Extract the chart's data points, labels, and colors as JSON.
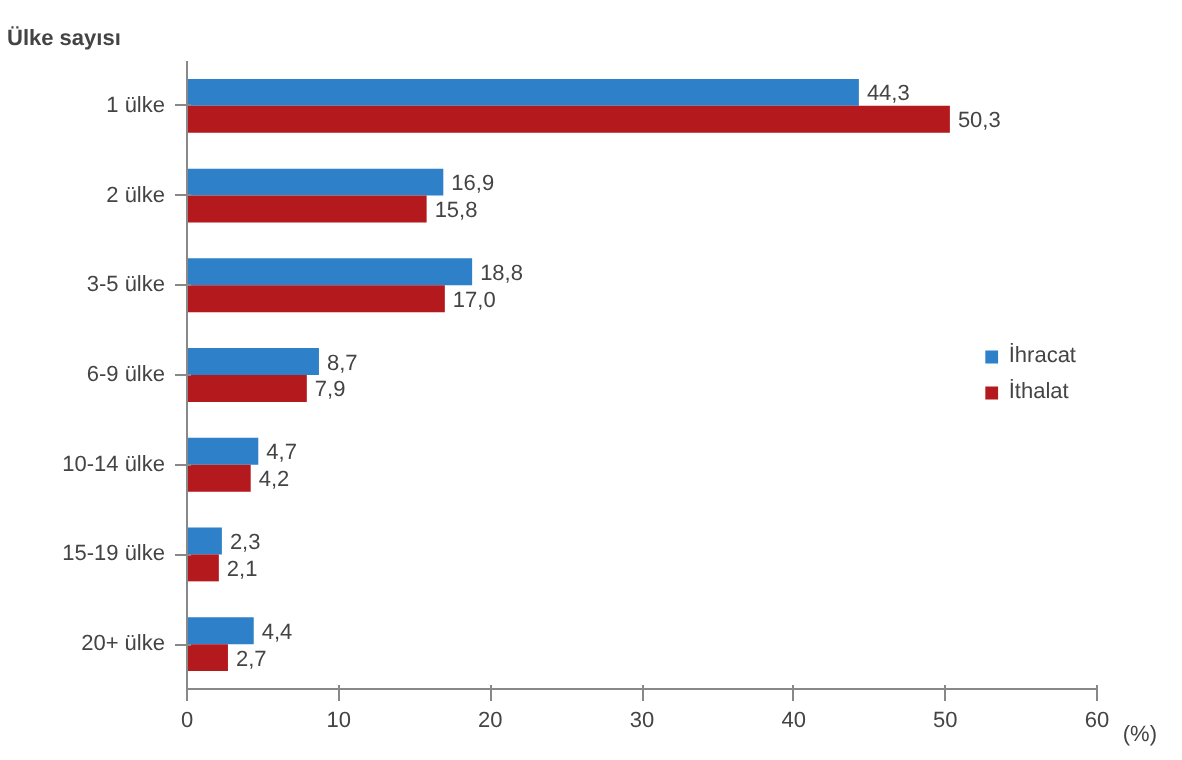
{
  "chart_data": {
    "type": "bar",
    "orientation": "horizontal",
    "ylabel": "Ülke sayısı",
    "xlabel": "(%)",
    "categories": [
      "1 ülke",
      "2 ülke",
      "3-5 ülke",
      "6-9 ülke",
      "10-14 ülke",
      "15-19 ülke",
      "20+ ülke"
    ],
    "series": [
      {
        "name": "İhracat",
        "color": "#2e80c8",
        "values": [
          44.3,
          16.9,
          18.8,
          8.7,
          4.7,
          2.3,
          4.4
        ],
        "value_labels": [
          "44,3",
          "16,9",
          "18,8",
          "8,7",
          "4,7",
          "2,3",
          "4,4"
        ]
      },
      {
        "name": "İthalat",
        "color": "#b3191d",
        "values": [
          50.3,
          15.8,
          17.0,
          7.9,
          4.2,
          2.1,
          2.7
        ],
        "value_labels": [
          "50,3",
          "15,8",
          "17,0",
          "7,9",
          "4,2",
          "2,1",
          "2,7"
        ]
      }
    ],
    "xlim": [
      0,
      60
    ],
    "xticks": [
      0,
      10,
      20,
      30,
      40,
      50,
      60
    ],
    "grid": false,
    "legend": "right"
  }
}
